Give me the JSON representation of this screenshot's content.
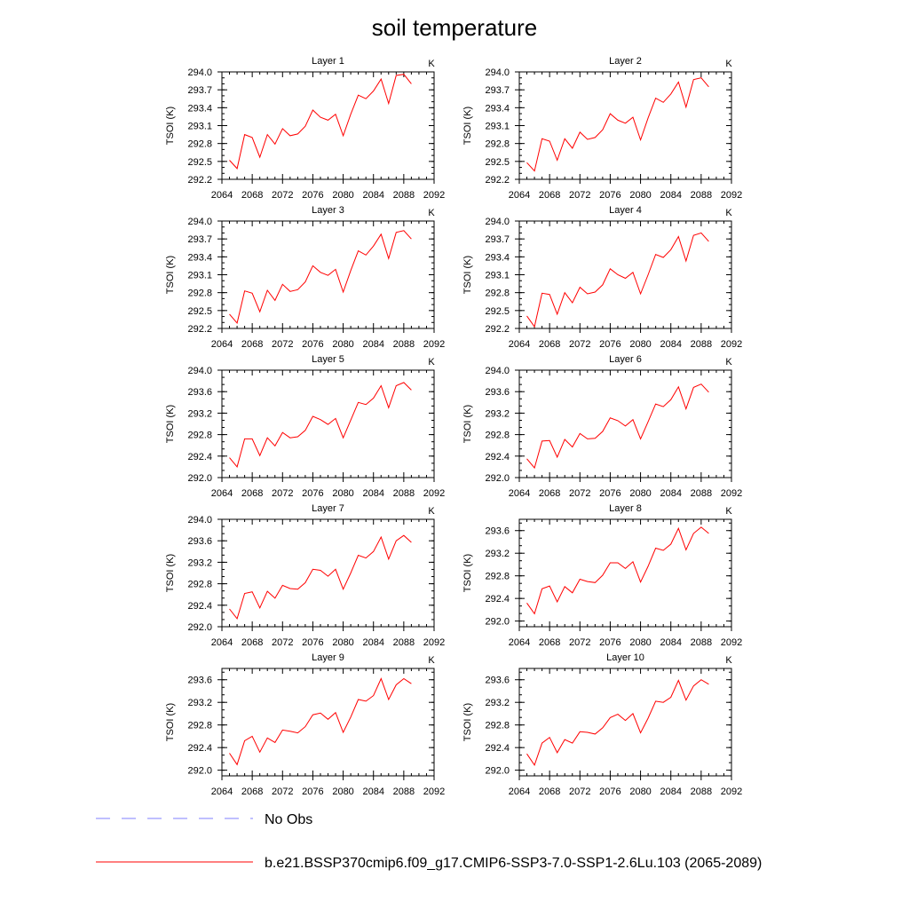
{
  "figure": {
    "title": "soil temperature",
    "legend": [
      {
        "label": "No Obs",
        "color": "#7f7fff",
        "dash": "dashed"
      },
      {
        "label": "b.e21.BSSP370cmip6.f09_g17.CMIP6-SSP3-7.0-SSP1-2.6Lu.103 (2065-2089)",
        "color": "#ff0000",
        "dash": "solid"
      }
    ]
  },
  "chart_data": [
    {
      "type": "line",
      "title": "Layer 1",
      "unit": "K",
      "ylabel": "TSOI  (K)",
      "xlim": [
        2064,
        2092
      ],
      "xticks": [
        2064,
        2068,
        2072,
        2076,
        2080,
        2084,
        2088,
        2092
      ],
      "ylim": [
        292.2,
        294.0
      ],
      "yticks": [
        "292.2",
        "292.5",
        "292.8",
        "293.1",
        "293.4",
        "293.7",
        "294.0"
      ],
      "x": [
        2065,
        2066,
        2067,
        2068,
        2069,
        2070,
        2071,
        2072,
        2073,
        2074,
        2075,
        2076,
        2077,
        2078,
        2079,
        2080,
        2081,
        2082,
        2083,
        2084,
        2085,
        2086,
        2087,
        2088,
        2089
      ],
      "series": [
        {
          "name": "b.e21.BSSP370cmip6.f09_g17.CMIP6-SSP3-7.0-SSP1-2.6Lu.103 (2065-2089)",
          "values": [
            292.52,
            292.38,
            292.95,
            292.9,
            292.57,
            292.95,
            292.79,
            293.05,
            292.93,
            292.96,
            293.09,
            293.36,
            293.24,
            293.19,
            293.29,
            292.93,
            293.29,
            293.61,
            293.55,
            293.68,
            293.88,
            293.47,
            293.94,
            293.96,
            293.8
          ]
        }
      ]
    },
    {
      "type": "line",
      "title": "Layer 2",
      "unit": "K",
      "ylabel": "TSOI  (K)",
      "xlim": [
        2064,
        2092
      ],
      "xticks": [
        2064,
        2068,
        2072,
        2076,
        2080,
        2084,
        2088,
        2092
      ],
      "ylim": [
        292.2,
        294.0
      ],
      "yticks": [
        "292.2",
        "292.5",
        "292.8",
        "293.1",
        "293.4",
        "293.7",
        "294.0"
      ],
      "x": [
        2065,
        2066,
        2067,
        2068,
        2069,
        2070,
        2071,
        2072,
        2073,
        2074,
        2075,
        2076,
        2077,
        2078,
        2079,
        2080,
        2081,
        2082,
        2083,
        2084,
        2085,
        2086,
        2087,
        2088,
        2089
      ],
      "series": [
        {
          "name": "b.e21.BSSP370cmip6.f09_g17.CMIP6-SSP3-7.0-SSP1-2.6Lu.103 (2065-2089)",
          "values": [
            292.48,
            292.34,
            292.88,
            292.84,
            292.52,
            292.88,
            292.72,
            292.99,
            292.87,
            292.9,
            293.03,
            293.3,
            293.19,
            293.14,
            293.24,
            292.86,
            293.23,
            293.56,
            293.49,
            293.63,
            293.83,
            293.41,
            293.87,
            293.9,
            293.75
          ]
        }
      ]
    },
    {
      "type": "line",
      "title": "Layer 3",
      "unit": "K",
      "ylabel": "TSOI  (K)",
      "xlim": [
        2064,
        2092
      ],
      "xticks": [
        2064,
        2068,
        2072,
        2076,
        2080,
        2084,
        2088,
        2092
      ],
      "ylim": [
        292.2,
        294.0
      ],
      "yticks": [
        "292.2",
        "292.5",
        "292.8",
        "293.1",
        "293.4",
        "293.7",
        "294.0"
      ],
      "x": [
        2065,
        2066,
        2067,
        2068,
        2069,
        2070,
        2071,
        2072,
        2073,
        2074,
        2075,
        2076,
        2077,
        2078,
        2079,
        2080,
        2081,
        2082,
        2083,
        2084,
        2085,
        2086,
        2087,
        2088,
        2089
      ],
      "series": [
        {
          "name": "b.e21.BSSP370cmip6.f09_g17.CMIP6-SSP3-7.0-SSP1-2.6Lu.103 (2065-2089)",
          "values": [
            292.44,
            292.29,
            292.83,
            292.79,
            292.48,
            292.84,
            292.67,
            292.94,
            292.82,
            292.85,
            292.98,
            293.25,
            293.14,
            293.09,
            293.19,
            292.81,
            293.17,
            293.5,
            293.43,
            293.58,
            293.78,
            293.37,
            293.81,
            293.84,
            293.7
          ]
        }
      ]
    },
    {
      "type": "line",
      "title": "Layer 4",
      "unit": "K",
      "ylabel": "TSOI  (K)",
      "xlim": [
        2064,
        2092
      ],
      "xticks": [
        2064,
        2068,
        2072,
        2076,
        2080,
        2084,
        2088,
        2092
      ],
      "ylim": [
        292.2,
        294.0
      ],
      "yticks": [
        "292.2",
        "292.5",
        "292.8",
        "293.1",
        "293.4",
        "293.7",
        "294.0"
      ],
      "x": [
        2065,
        2066,
        2067,
        2068,
        2069,
        2070,
        2071,
        2072,
        2073,
        2074,
        2075,
        2076,
        2077,
        2078,
        2079,
        2080,
        2081,
        2082,
        2083,
        2084,
        2085,
        2086,
        2087,
        2088,
        2089
      ],
      "series": [
        {
          "name": "b.e21.BSSP370cmip6.f09_g17.CMIP6-SSP3-7.0-SSP1-2.6Lu.103 (2065-2089)",
          "values": [
            292.41,
            292.23,
            292.79,
            292.77,
            292.44,
            292.8,
            292.63,
            292.89,
            292.78,
            292.81,
            292.93,
            293.2,
            293.1,
            293.04,
            293.14,
            292.78,
            293.1,
            293.44,
            293.39,
            293.52,
            293.74,
            293.33,
            293.76,
            293.8,
            293.66
          ]
        }
      ]
    },
    {
      "type": "line",
      "title": "Layer 5",
      "unit": "K",
      "ylabel": "TSOI  (K)",
      "xlim": [
        2064,
        2092
      ],
      "xticks": [
        2064,
        2068,
        2072,
        2076,
        2080,
        2084,
        2088,
        2092
      ],
      "ylim": [
        292.0,
        294.0
      ],
      "yticks": [
        "292.0",
        "292.4",
        "292.8",
        "293.2",
        "293.6",
        "294.0"
      ],
      "x": [
        2065,
        2066,
        2067,
        2068,
        2069,
        2070,
        2071,
        2072,
        2073,
        2074,
        2075,
        2076,
        2077,
        2078,
        2079,
        2080,
        2081,
        2082,
        2083,
        2084,
        2085,
        2086,
        2087,
        2088,
        2089
      ],
      "series": [
        {
          "name": "b.e21.BSSP370cmip6.f09_g17.CMIP6-SSP3-7.0-SSP1-2.6Lu.103 (2065-2089)",
          "values": [
            292.37,
            292.2,
            292.72,
            292.72,
            292.41,
            292.74,
            292.59,
            292.84,
            292.74,
            292.76,
            292.88,
            293.14,
            293.08,
            292.99,
            293.1,
            292.74,
            293.07,
            293.4,
            293.36,
            293.48,
            293.71,
            293.3,
            293.71,
            293.77,
            293.63
          ]
        }
      ]
    },
    {
      "type": "line",
      "title": "Layer 6",
      "unit": "K",
      "ylabel": "TSOI  (K)",
      "xlim": [
        2064,
        2092
      ],
      "xticks": [
        2064,
        2068,
        2072,
        2076,
        2080,
        2084,
        2088,
        2092
      ],
      "ylim": [
        292.0,
        294.0
      ],
      "yticks": [
        "292.0",
        "292.4",
        "292.8",
        "293.2",
        "293.6",
        "294.0"
      ],
      "x": [
        2065,
        2066,
        2067,
        2068,
        2069,
        2070,
        2071,
        2072,
        2073,
        2074,
        2075,
        2076,
        2077,
        2078,
        2079,
        2080,
        2081,
        2082,
        2083,
        2084,
        2085,
        2086,
        2087,
        2088,
        2089
      ],
      "series": [
        {
          "name": "b.e21.BSSP370cmip6.f09_g17.CMIP6-SSP3-7.0-SSP1-2.6Lu.103 (2065-2089)",
          "values": [
            292.35,
            292.18,
            292.68,
            292.69,
            292.38,
            292.71,
            292.57,
            292.82,
            292.72,
            292.73,
            292.86,
            293.11,
            293.06,
            292.96,
            293.08,
            292.72,
            293.04,
            293.37,
            293.32,
            293.45,
            293.69,
            293.28,
            293.68,
            293.74,
            293.59
          ]
        }
      ]
    },
    {
      "type": "line",
      "title": "Layer 7",
      "unit": "K",
      "ylabel": "TSOI  (K)",
      "xlim": [
        2064,
        2092
      ],
      "xticks": [
        2064,
        2068,
        2072,
        2076,
        2080,
        2084,
        2088,
        2092
      ],
      "ylim": [
        292.0,
        294.0
      ],
      "yticks": [
        "292.0",
        "292.4",
        "292.8",
        "293.2",
        "293.6",
        "294.0"
      ],
      "x": [
        2065,
        2066,
        2067,
        2068,
        2069,
        2070,
        2071,
        2072,
        2073,
        2074,
        2075,
        2076,
        2077,
        2078,
        2079,
        2080,
        2081,
        2082,
        2083,
        2084,
        2085,
        2086,
        2087,
        2088,
        2089
      ],
      "series": [
        {
          "name": "b.e21.BSSP370cmip6.f09_g17.CMIP6-SSP3-7.0-SSP1-2.6Lu.103 (2065-2089)",
          "values": [
            292.33,
            292.15,
            292.62,
            292.65,
            292.35,
            292.66,
            292.53,
            292.77,
            292.71,
            292.7,
            292.82,
            293.07,
            293.05,
            292.94,
            293.07,
            292.7,
            293.0,
            293.33,
            293.28,
            293.4,
            293.67,
            293.26,
            293.6,
            293.7,
            293.57
          ]
        }
      ]
    },
    {
      "type": "line",
      "title": "Layer 8",
      "unit": "K",
      "ylabel": "TSOI  (K)",
      "xlim": [
        2064,
        2092
      ],
      "xticks": [
        2064,
        2068,
        2072,
        2076,
        2080,
        2084,
        2088,
        2092
      ],
      "ylim": [
        291.9,
        293.8
      ],
      "yticks": [
        "292.0",
        "292.4",
        "292.8",
        "293.2",
        "293.6"
      ],
      "x": [
        2065,
        2066,
        2067,
        2068,
        2069,
        2070,
        2071,
        2072,
        2073,
        2074,
        2075,
        2076,
        2077,
        2078,
        2079,
        2080,
        2081,
        2082,
        2083,
        2084,
        2085,
        2086,
        2087,
        2088,
        2089
      ],
      "series": [
        {
          "name": "b.e21.BSSP370cmip6.f09_g17.CMIP6-SSP3-7.0-SSP1-2.6Lu.103 (2065-2089)",
          "values": [
            292.32,
            292.13,
            292.57,
            292.62,
            292.34,
            292.61,
            292.5,
            292.74,
            292.7,
            292.68,
            292.81,
            293.03,
            293.03,
            292.93,
            293.05,
            292.69,
            292.97,
            293.29,
            293.25,
            293.36,
            293.64,
            293.26,
            293.55,
            293.66,
            293.55
          ]
        }
      ]
    },
    {
      "type": "line",
      "title": "Layer 9",
      "unit": "K",
      "ylabel": "TSOI  (K)",
      "xlim": [
        2064,
        2092
      ],
      "xticks": [
        2064,
        2068,
        2072,
        2076,
        2080,
        2084,
        2088,
        2092
      ],
      "ylim": [
        291.9,
        293.8
      ],
      "yticks": [
        "292.0",
        "292.4",
        "292.8",
        "293.2",
        "293.6"
      ],
      "x": [
        2065,
        2066,
        2067,
        2068,
        2069,
        2070,
        2071,
        2072,
        2073,
        2074,
        2075,
        2076,
        2077,
        2078,
        2079,
        2080,
        2081,
        2082,
        2083,
        2084,
        2085,
        2086,
        2087,
        2088,
        2089
      ],
      "series": [
        {
          "name": "b.e21.BSSP370cmip6.f09_g17.CMIP6-SSP3-7.0-SSP1-2.6Lu.103 (2065-2089)",
          "values": [
            292.3,
            292.1,
            292.52,
            292.6,
            292.32,
            292.57,
            292.49,
            292.71,
            292.69,
            292.66,
            292.77,
            292.98,
            293.01,
            292.9,
            293.02,
            292.67,
            292.94,
            293.25,
            293.22,
            293.32,
            293.62,
            293.25,
            293.51,
            293.62,
            293.53
          ]
        }
      ]
    },
    {
      "type": "line",
      "title": "Layer 10",
      "unit": "K",
      "ylabel": "TSOI  (K)",
      "xlim": [
        2064,
        2092
      ],
      "xticks": [
        2064,
        2068,
        2072,
        2076,
        2080,
        2084,
        2088,
        2092
      ],
      "ylim": [
        291.9,
        293.8
      ],
      "yticks": [
        "292.0",
        "292.4",
        "292.8",
        "293.2",
        "293.6"
      ],
      "x": [
        2065,
        2066,
        2067,
        2068,
        2069,
        2070,
        2071,
        2072,
        2073,
        2074,
        2075,
        2076,
        2077,
        2078,
        2079,
        2080,
        2081,
        2082,
        2083,
        2084,
        2085,
        2086,
        2087,
        2088,
        2089
      ],
      "series": [
        {
          "name": "b.e21.BSSP370cmip6.f09_g17.CMIP6-SSP3-7.0-SSP1-2.6Lu.103 (2065-2089)",
          "values": [
            292.29,
            292.09,
            292.48,
            292.58,
            292.31,
            292.54,
            292.48,
            292.68,
            292.67,
            292.64,
            292.75,
            292.93,
            292.99,
            292.88,
            293.0,
            292.66,
            292.92,
            293.22,
            293.2,
            293.29,
            293.59,
            293.24,
            293.49,
            293.6,
            293.52
          ]
        }
      ]
    }
  ]
}
